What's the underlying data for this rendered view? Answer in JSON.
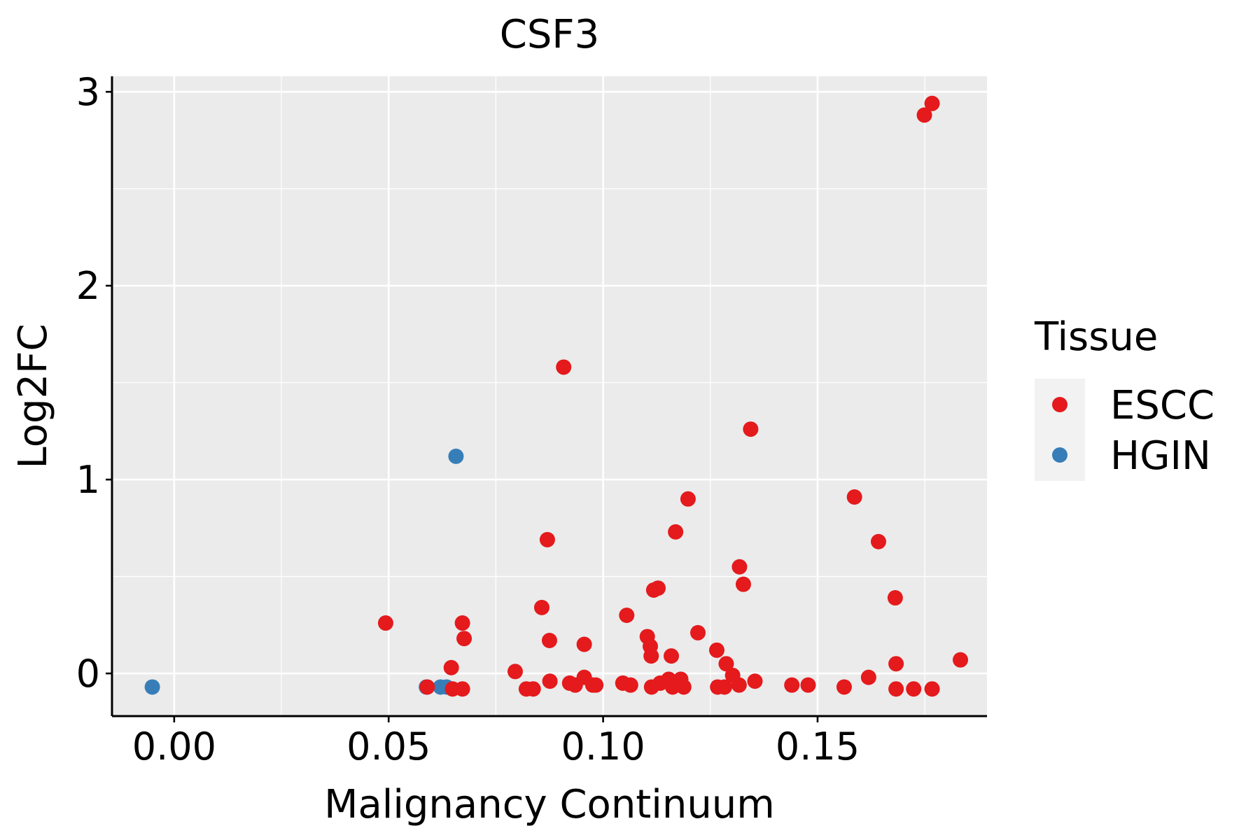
{
  "chart_data": {
    "type": "scatter",
    "title": "CSF3",
    "xlabel": "Malignancy Continuum",
    "ylabel": "Log2FC",
    "xlim": [
      -0.0145,
      0.1895
    ],
    "ylim": [
      -0.22,
      3.08
    ],
    "x_ticks": [
      0.0,
      0.05,
      0.1,
      0.15
    ],
    "x_tick_labels": [
      "0.00",
      "0.05",
      "0.10",
      "0.15"
    ],
    "y_ticks": [
      0,
      1,
      2,
      3
    ],
    "y_tick_labels": [
      "0",
      "1",
      "2",
      "3"
    ],
    "grid": true,
    "legend": {
      "title": "Tissue",
      "position": "right",
      "entries": [
        {
          "label": "ESCC",
          "color": "#e41a1c"
        },
        {
          "label": "HGIN",
          "color": "#377eb8"
        }
      ]
    },
    "series": [
      {
        "name": "HGIN",
        "color": "#377eb8",
        "points": [
          [
            -0.0051,
            -0.07
          ],
          [
            0.0588,
            -0.07
          ],
          [
            0.0621,
            -0.07
          ],
          [
            0.0635,
            -0.07
          ],
          [
            0.0657,
            1.12
          ]
        ]
      },
      {
        "name": "ESCC",
        "color": "#e41a1c",
        "points": [
          [
            0.1767,
            2.94
          ],
          [
            0.1749,
            2.88
          ],
          [
            0.0908,
            1.58
          ],
          [
            0.1344,
            1.26
          ],
          [
            0.1198,
            0.9
          ],
          [
            0.1586,
            0.91
          ],
          [
            0.1169,
            0.73
          ],
          [
            0.087,
            0.69
          ],
          [
            0.1642,
            0.68
          ],
          [
            0.1318,
            0.55
          ],
          [
            0.1327,
            0.46
          ],
          [
            0.1128,
            0.44
          ],
          [
            0.1118,
            0.43
          ],
          [
            0.1681,
            0.39
          ],
          [
            0.0857,
            0.34
          ],
          [
            0.1055,
            0.3
          ],
          [
            0.0493,
            0.26
          ],
          [
            0.0672,
            0.26
          ],
          [
            0.0676,
            0.18
          ],
          [
            0.1221,
            0.21
          ],
          [
            0.1103,
            0.19
          ],
          [
            0.0875,
            0.17
          ],
          [
            0.0956,
            0.15
          ],
          [
            0.111,
            0.14
          ],
          [
            0.1112,
            0.09
          ],
          [
            0.1159,
            0.09
          ],
          [
            0.1265,
            0.12
          ],
          [
            0.1287,
            0.05
          ],
          [
            0.1683,
            0.05
          ],
          [
            0.1833,
            0.07
          ],
          [
            0.0646,
            0.03
          ],
          [
            0.0795,
            0.01
          ],
          [
            0.1302,
            -0.01
          ],
          [
            0.1354,
            -0.04
          ],
          [
            0.1619,
            -0.02
          ],
          [
            0.0876,
            -0.04
          ],
          [
            0.0956,
            -0.02
          ],
          [
            0.0922,
            -0.05
          ],
          [
            0.0935,
            -0.06
          ],
          [
            0.0976,
            -0.06
          ],
          [
            0.0983,
            -0.06
          ],
          [
            0.1046,
            -0.05
          ],
          [
            0.1064,
            -0.06
          ],
          [
            0.1113,
            -0.07
          ],
          [
            0.1133,
            -0.05
          ],
          [
            0.1153,
            -0.03
          ],
          [
            0.1162,
            -0.07
          ],
          [
            0.1181,
            -0.03
          ],
          [
            0.1188,
            -0.07
          ],
          [
            0.1267,
            -0.07
          ],
          [
            0.1283,
            -0.07
          ],
          [
            0.1317,
            -0.06
          ],
          [
            0.144,
            -0.06
          ],
          [
            0.1478,
            -0.06
          ],
          [
            0.1562,
            -0.07
          ],
          [
            0.1683,
            -0.08
          ],
          [
            0.1724,
            -0.08
          ],
          [
            0.1767,
            -0.08
          ],
          [
            0.059,
            -0.07
          ],
          [
            0.0649,
            -0.08
          ],
          [
            0.0672,
            -0.08
          ],
          [
            0.0821,
            -0.08
          ],
          [
            0.0837,
            -0.08
          ]
        ]
      }
    ]
  }
}
